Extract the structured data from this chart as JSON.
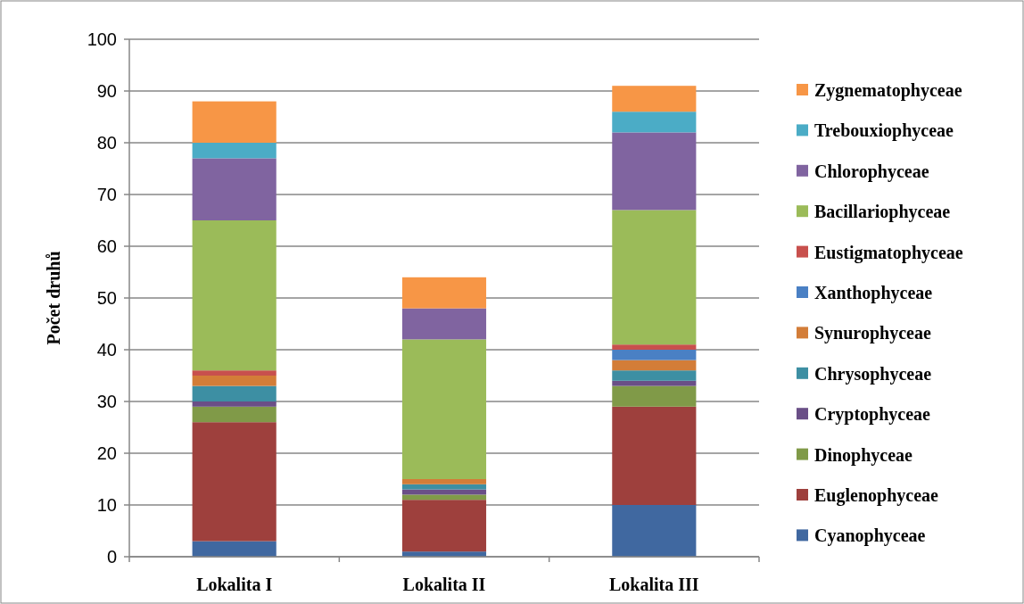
{
  "chart_data": {
    "type": "bar",
    "stacked": true,
    "ylabel": "Počet druhů",
    "categories": [
      "Lokalita I",
      "Lokalita II",
      "Lokalita III"
    ],
    "ylim": [
      0,
      100
    ],
    "yticks": [
      0,
      10,
      20,
      30,
      40,
      50,
      60,
      70,
      80,
      90,
      100
    ],
    "grid": "y",
    "legend": "right",
    "series": [
      {
        "name": "Cyanophyceae",
        "color": "#4068a0",
        "values": [
          3,
          1,
          10
        ]
      },
      {
        "name": "Euglenophyceae",
        "color": "#9e403d",
        "values": [
          23,
          10,
          19
        ]
      },
      {
        "name": "Dinophyceae",
        "color": "#809a48",
        "values": [
          3,
          1,
          4
        ]
      },
      {
        "name": "Cryptophyceae",
        "color": "#6a4f87",
        "values": [
          1,
          1,
          1
        ]
      },
      {
        "name": "Chrysophyceae",
        "color": "#3d8fa3",
        "values": [
          3,
          1,
          2
        ]
      },
      {
        "name": "Synurophyceae",
        "color": "#d37d38",
        "values": [
          2,
          1,
          2
        ]
      },
      {
        "name": "Xanthophyceae",
        "color": "#4a80c4",
        "values": [
          0,
          0,
          2
        ]
      },
      {
        "name": "Eustigmatophyceae",
        "color": "#c8504d",
        "values": [
          1,
          0,
          1
        ]
      },
      {
        "name": "Bacillariophyceae",
        "color": "#9bbb59",
        "values": [
          29,
          27,
          26
        ]
      },
      {
        "name": "Chlorophyceae",
        "color": "#8064a0",
        "values": [
          12,
          6,
          15
        ]
      },
      {
        "name": "Trebouxiophyceae",
        "color": "#4bacc6",
        "values": [
          3,
          0,
          4
        ]
      },
      {
        "name": "Zygnematophyceae",
        "color": "#f79646",
        "values": [
          8,
          6,
          5
        ]
      }
    ]
  }
}
